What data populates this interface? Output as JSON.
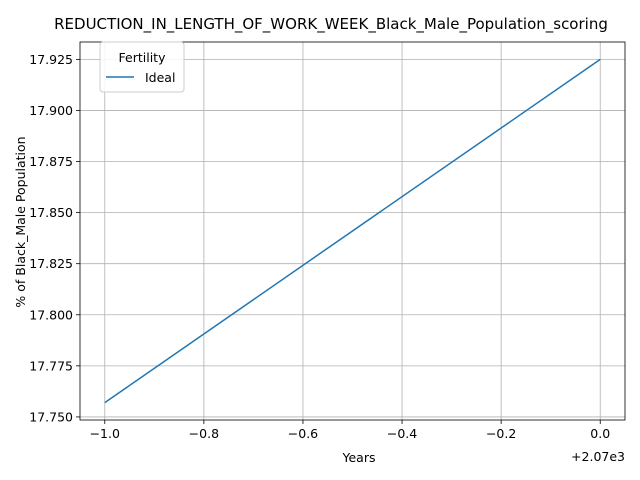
{
  "chart_data": {
    "type": "line",
    "title": "REDUCTION_IN_LENGTH_OF_WORK_WEEK_Black_Male_Population_scoring",
    "xlabel": "Years",
    "ylabel": "% of Black_Male Population",
    "x_offset_label": "+2.07e3",
    "x": [
      2069,
      2070
    ],
    "x_tick_labels": [
      "−1.0",
      "−0.8",
      "−0.6",
      "−0.4",
      "−0.2",
      "0.0"
    ],
    "y_tick_labels": [
      "17.750",
      "17.775",
      "17.800",
      "17.825",
      "17.850",
      "17.875",
      "17.900",
      "17.925"
    ],
    "xlim": [
      2068.95,
      2070.05
    ],
    "ylim": [
      17.7485,
      17.9335
    ],
    "grid": true,
    "legend": {
      "title": "Fertility",
      "placement": "top-left"
    },
    "series": [
      {
        "name": "Ideal",
        "color": "#1f77b4",
        "values": [
          17.757,
          17.925
        ]
      }
    ]
  }
}
